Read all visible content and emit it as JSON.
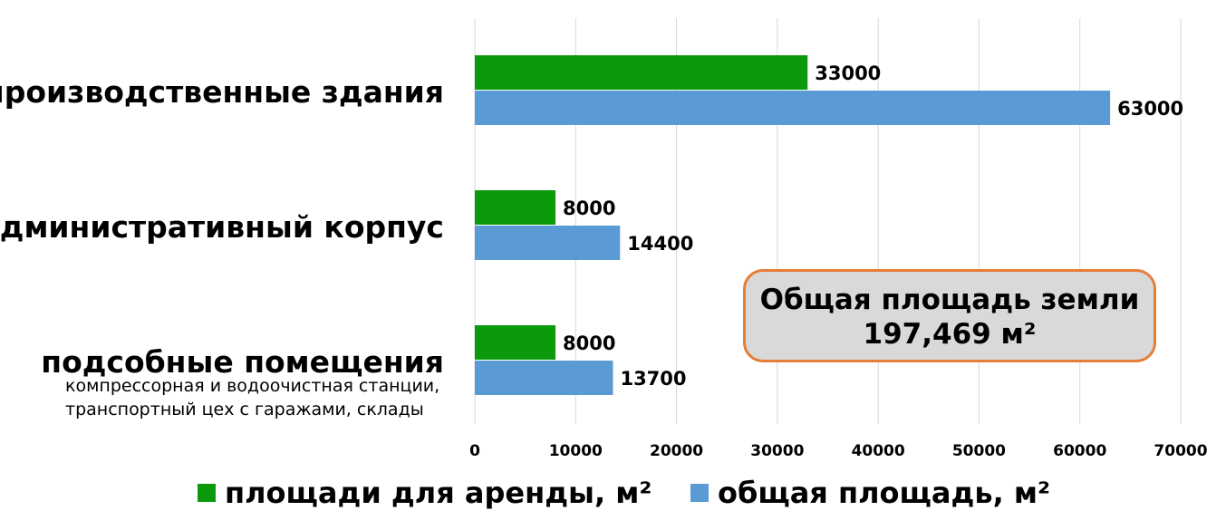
{
  "chart_data": {
    "type": "bar",
    "orientation": "horizontal",
    "categories": [
      "производственные здания",
      "административный корпус",
      "подсобные помещения"
    ],
    "category_notes": [
      "",
      "",
      "компрессорная и водоочистная станции, транспортный цех с гаражами, склады"
    ],
    "series": [
      {
        "name": "площади для аренды, м²",
        "values": [
          33000,
          8000,
          8000
        ],
        "color": "#0b9a0b"
      },
      {
        "name": "общая площадь, м²",
        "values": [
          63000,
          14400,
          13700
        ],
        "color": "#5b9bd5"
      }
    ],
    "xlim": [
      0,
      70000
    ],
    "x_ticks": [
      0,
      10000,
      20000,
      30000,
      40000,
      50000,
      60000,
      70000
    ],
    "grid": true,
    "legend_position": "bottom",
    "annotation": {
      "line1": "Общая площадь земли",
      "line2": "197,469 м²"
    }
  }
}
